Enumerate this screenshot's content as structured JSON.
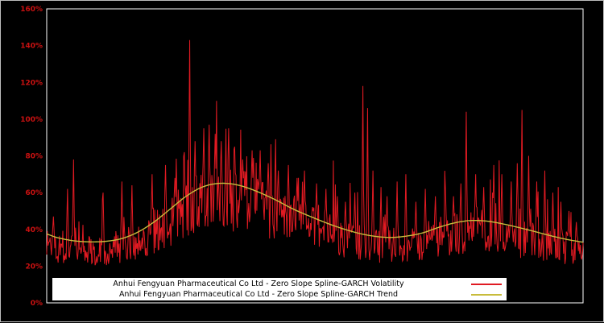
{
  "colors": {
    "background": "#000000",
    "plot_border": "#ffffff",
    "volatility": "#e01a22",
    "trend": "#c8bc3c",
    "tick_label": "#cc1111",
    "legend_bg": "#ffffff",
    "legend_text": "#000000"
  },
  "legend": {
    "items": [
      {
        "label": "Anhui Fengyuan Pharmaceutical Co Ltd - Zero Slope Spline-GARCH Volatility",
        "color": "#e01a22"
      },
      {
        "label": "Anhui Fengyuan Pharmaceutical Co Ltd - Zero Slope Spline-GARCH Trend",
        "color": "#c8bc3c"
      }
    ]
  },
  "chart_data": {
    "type": "line",
    "title": "",
    "xlabel": "",
    "ylabel": "",
    "ylim": [
      0,
      160
    ],
    "y_tick_values": [
      0,
      20,
      40,
      60,
      80,
      100,
      120,
      140,
      160
    ],
    "y_tick_labels": [
      "0%",
      "20%",
      "40%",
      "60%",
      "80%",
      "100%",
      "120%",
      "140%",
      "160%"
    ],
    "x_tick_labels": [],
    "grid": false,
    "legend_position": "bottom-center",
    "series": [
      {
        "name": "Anhui Fengyuan Pharmaceutical Co Ltd - Zero Slope Spline-GARCH Volatility",
        "type": "noisy-line",
        "color": "#e01a22",
        "n_points": 800,
        "seed": 1337,
        "noise": {
          "low_factor": 0.6,
          "span_factor": 0.55,
          "burst_prob": 0.07,
          "burst_min": 0.2,
          "burst_span": 0.6,
          "min_value": 20.5
        },
        "spikes_pct": [
          [
            0.013,
            47
          ],
          [
            0.039,
            62
          ],
          [
            0.05,
            78
          ],
          [
            0.105,
            60
          ],
          [
            0.14,
            66
          ],
          [
            0.159,
            64
          ],
          [
            0.197,
            70
          ],
          [
            0.222,
            75
          ],
          [
            0.239,
            68
          ],
          [
            0.257,
            82
          ],
          [
            0.266,
            143
          ],
          [
            0.276,
            88
          ],
          [
            0.293,
            95
          ],
          [
            0.303,
            97
          ],
          [
            0.314,
            92
          ],
          [
            0.326,
            88
          ],
          [
            0.339,
            95
          ],
          [
            0.35,
            85
          ],
          [
            0.365,
            78
          ],
          [
            0.383,
            83
          ],
          [
            0.398,
            83
          ],
          [
            0.413,
            76
          ],
          [
            0.432,
            72
          ],
          [
            0.45,
            75
          ],
          [
            0.467,
            68
          ],
          [
            0.48,
            72
          ],
          [
            0.503,
            65
          ],
          [
            0.521,
            62
          ],
          [
            0.542,
            58
          ],
          [
            0.557,
            55
          ],
          [
            0.575,
            60
          ],
          [
            0.589,
            118
          ],
          [
            0.598,
            106
          ],
          [
            0.608,
            72
          ],
          [
            0.623,
            63
          ],
          [
            0.635,
            58
          ],
          [
            0.653,
            66
          ],
          [
            0.67,
            70
          ],
          [
            0.688,
            55
          ],
          [
            0.706,
            62
          ],
          [
            0.725,
            58
          ],
          [
            0.743,
            62
          ],
          [
            0.758,
            58
          ],
          [
            0.772,
            65
          ],
          [
            0.782,
            104
          ],
          [
            0.8,
            70
          ],
          [
            0.815,
            63
          ],
          [
            0.833,
            75
          ],
          [
            0.848,
            70
          ],
          [
            0.866,
            66
          ],
          [
            0.877,
            76
          ],
          [
            0.886,
            105
          ],
          [
            0.898,
            80
          ],
          [
            0.914,
            66
          ],
          [
            0.929,
            72
          ],
          [
            0.944,
            60
          ],
          [
            0.959,
            55
          ],
          [
            0.974,
            50
          ],
          [
            0.988,
            44
          ]
        ]
      },
      {
        "name": "Anhui Fengyuan Pharmaceutical Co Ltd - Zero Slope Spline-GARCH Trend",
        "type": "smooth-line",
        "color": "#c8bc3c",
        "points_pct": [
          [
            0.0,
            37.5
          ],
          [
            0.02,
            35.5
          ],
          [
            0.05,
            33.8
          ],
          [
            0.08,
            33.2
          ],
          [
            0.11,
            33.5
          ],
          [
            0.14,
            35.0
          ],
          [
            0.17,
            38.5
          ],
          [
            0.2,
            44.0
          ],
          [
            0.23,
            51.0
          ],
          [
            0.26,
            58.0
          ],
          [
            0.29,
            63.0
          ],
          [
            0.32,
            65.0
          ],
          [
            0.35,
            64.5
          ],
          [
            0.38,
            62.0
          ],
          [
            0.42,
            57.0
          ],
          [
            0.46,
            51.0
          ],
          [
            0.5,
            46.0
          ],
          [
            0.54,
            41.5
          ],
          [
            0.58,
            38.0
          ],
          [
            0.61,
            36.3
          ],
          [
            0.64,
            35.6
          ],
          [
            0.67,
            36.3
          ],
          [
            0.7,
            38.0
          ],
          [
            0.73,
            41.0
          ],
          [
            0.76,
            43.5
          ],
          [
            0.79,
            44.8
          ],
          [
            0.82,
            44.5
          ],
          [
            0.85,
            43.0
          ],
          [
            0.88,
            41.0
          ],
          [
            0.91,
            38.8
          ],
          [
            0.94,
            36.5
          ],
          [
            0.97,
            34.5
          ],
          [
            1.0,
            33.0
          ]
        ]
      }
    ]
  }
}
